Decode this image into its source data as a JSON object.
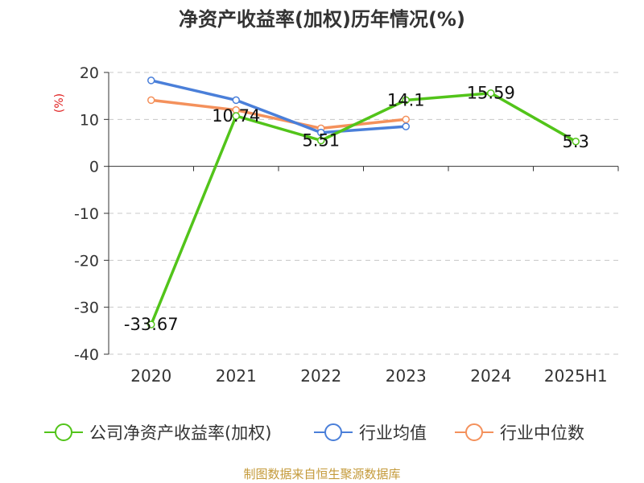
{
  "chart_data": {
    "type": "line",
    "title": "净资产收益率(加权)历年情况(%)",
    "ylabel": "(%)",
    "xlabel": "",
    "categories": [
      "2020",
      "2021",
      "2022",
      "2023",
      "2024",
      "2025H1"
    ],
    "ylim": [
      -40,
      20
    ],
    "yticks": [
      20,
      10,
      0,
      -10,
      -20,
      -30,
      -40
    ],
    "grid": true,
    "legend_position": "bottom",
    "series": [
      {
        "name": "公司净资产收益率(加权)",
        "color": "#52c41a",
        "values": [
          -33.67,
          10.74,
          5.51,
          14.1,
          15.59,
          5.3
        ],
        "data_labels": [
          "-33.67",
          "10.74",
          "5.51",
          "14.1",
          "15.59",
          "5.3"
        ]
      },
      {
        "name": "行业均值",
        "color": "#4a7fd9",
        "values": [
          18.3,
          14.1,
          7.2,
          8.5,
          null,
          null
        ]
      },
      {
        "name": "行业中位数",
        "color": "#f4915c",
        "values": [
          14.1,
          12.0,
          8.1,
          10.0,
          null,
          null
        ]
      }
    ]
  },
  "footer": {
    "source": "制图数据来自恒生聚源数据库"
  }
}
